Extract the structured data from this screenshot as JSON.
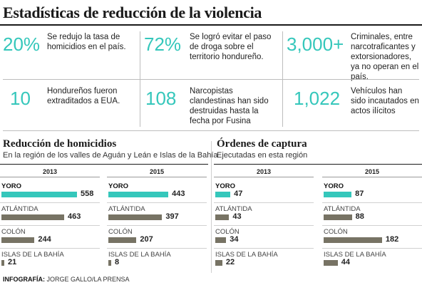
{
  "title": "Estadísticas de reducción de la violencia",
  "stats": [
    {
      "value": "20%",
      "text": "Se redujo la tasa de homicidios en el país."
    },
    {
      "value": "72%",
      "text": "Se logró evitar el paso de droga sobre el territorio hondureño."
    },
    {
      "value": "3,000+",
      "text": "Criminales, entre narcotraficantes y extorsionadores, ya no operan en el país."
    },
    {
      "value": "10",
      "text": "Hondureños fueron extraditados a EUA."
    },
    {
      "value": "108",
      "text": "Narcopistas clandestinas han sido destruidas hasta la fecha por Fusina"
    },
    {
      "value": "1,022",
      "text": "Vehículos han sido incautados en actos ilícitos"
    }
  ],
  "colors": {
    "accent": "#35c7bb",
    "bar": "#777364",
    "text": "#222222"
  },
  "credit": {
    "label": "INFOGRAFÍA:",
    "author": "JORGE GALLO/LA PRENSA"
  },
  "chart_data": [
    {
      "type": "bar",
      "orientation": "horizontal",
      "title": "Reducción de homicidios",
      "subtitle": "En la región de los valles de Aguán y Leán e Islas de la Bahía",
      "categories": [
        "YORO",
        "ATLÁNTIDA",
        "COLÓN",
        "ISLAS DE LA BAHÍA"
      ],
      "series": [
        {
          "name": "2013",
          "values": [
            558,
            463,
            244,
            21
          ]
        },
        {
          "name": "2015",
          "values": [
            443,
            397,
            207,
            8
          ]
        }
      ],
      "highlight_category": "YORO"
    },
    {
      "type": "bar",
      "orientation": "horizontal",
      "title": "Órdenes de captura",
      "subtitle": "Ejecutadas en esta región",
      "categories": [
        "YORO",
        "ATLÁNTIDA",
        "COLÓN",
        "ISLAS DE LA BAHÍA"
      ],
      "series": [
        {
          "name": "2013",
          "values": [
            47,
            43,
            34,
            22
          ]
        },
        {
          "name": "2015",
          "values": [
            87,
            88,
            182,
            44
          ]
        }
      ],
      "highlight_category": "YORO"
    }
  ]
}
